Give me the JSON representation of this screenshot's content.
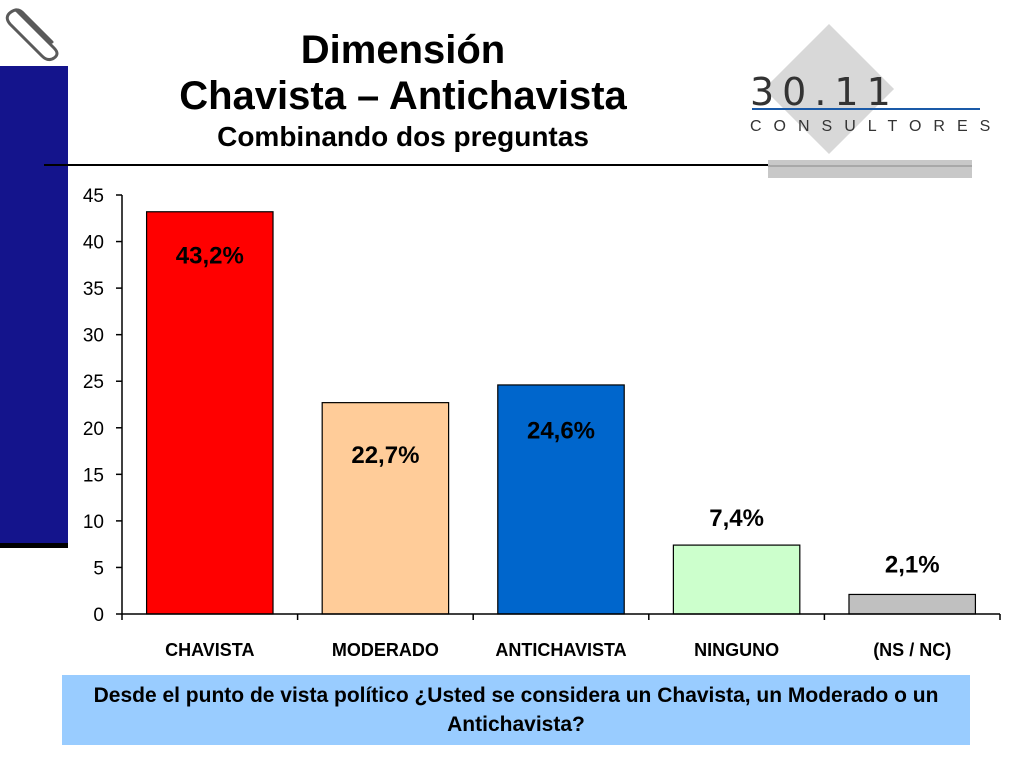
{
  "title": {
    "line1": "Dimensión",
    "line2": "Chavista – Antichavista",
    "subtitle": "Combinando dos preguntas"
  },
  "logo": {
    "number": "30.11",
    "subtitle": "CONSULTORES"
  },
  "question": "Desde el punto de vista político ¿Usted se considera un Chavista, un Moderado o un Antichavista?",
  "chart_data": {
    "type": "bar",
    "title": "Dimensión Chavista – Antichavista",
    "categories": [
      "CHAVISTA",
      "MODERADO",
      "ANTICHAVISTA",
      "NINGUNO",
      "(NS / NC)"
    ],
    "values": [
      43.2,
      22.7,
      24.6,
      7.4,
      2.1
    ],
    "data_labels": [
      "43,2%",
      "22,7%",
      "24,6%",
      "7,4%",
      "2,1%"
    ],
    "colors": [
      "#ff0000",
      "#ffcc99",
      "#0066cc",
      "#ccffcc",
      "#c0c0c0"
    ],
    "ylim": [
      0,
      45
    ],
    "yticks": [
      0,
      5,
      10,
      15,
      20,
      25,
      30,
      35,
      40,
      45
    ],
    "xlabel": "",
    "ylabel": "",
    "grid": false,
    "legend": false
  }
}
